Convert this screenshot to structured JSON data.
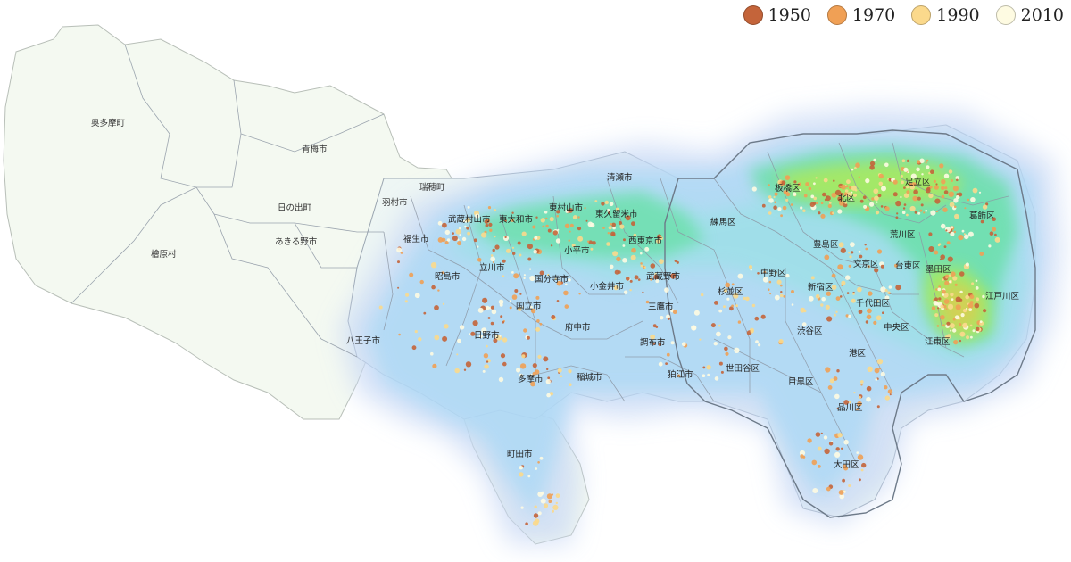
{
  "legend": [
    {
      "label": "1950",
      "color": "#c4643a"
    },
    {
      "label": "1970",
      "color": "#f0a055"
    },
    {
      "label": "1990",
      "color": "#fbd98c"
    },
    {
      "label": "2010",
      "color": "#fefbe2"
    }
  ],
  "labels": {
    "okutama": "奥多摩町",
    "ome": "青梅市",
    "mizuho": "瑞穂町",
    "hamura": "羽村市",
    "hinode": "日の出町",
    "akiruno": "あきる野市",
    "hinohara": "檜原村",
    "fussa": "福生市",
    "musashimurayama": "武蔵村山市",
    "higashiyamato": "東大和市",
    "higashimurayama": "東村山市",
    "kiyose": "清瀬市",
    "higashikurume": "東久留米市",
    "nishitokyo": "西東京市",
    "kodaira": "小平市",
    "tachikawa": "立川市",
    "akishima": "昭島市",
    "kokubunji": "国分寺市",
    "koganei": "小金井市",
    "musashino": "武蔵野市",
    "kunitachi": "国立市",
    "mitaka": "三鷹市",
    "fuchu": "府中市",
    "hino": "日野市",
    "hachioji": "八王子市",
    "chofu": "調布市",
    "komae": "狛江市",
    "tama": "多摩市",
    "inagi": "稲城市",
    "machida": "町田市",
    "nerima": "練馬区",
    "itabashi": "板橋区",
    "kita": "北区",
    "adachi": "足立区",
    "katsushika": "葛飾区",
    "arakawa": "荒川区",
    "toshima": "豊島区",
    "nakano": "中野区",
    "bunkyo": "文京区",
    "taito": "台東区",
    "sumida": "墨田区",
    "suginami": "杉並区",
    "shinjuku": "新宿区",
    "chiyoda": "千代田区",
    "edogawa": "江戸川区",
    "shibuya": "渋谷区",
    "chuo": "中央区",
    "koto": "江東区",
    "minato": "港区",
    "setagaya": "世田谷区",
    "meguro": "目黒区",
    "shinagawa": "品川区",
    "ota": "大田区"
  }
}
